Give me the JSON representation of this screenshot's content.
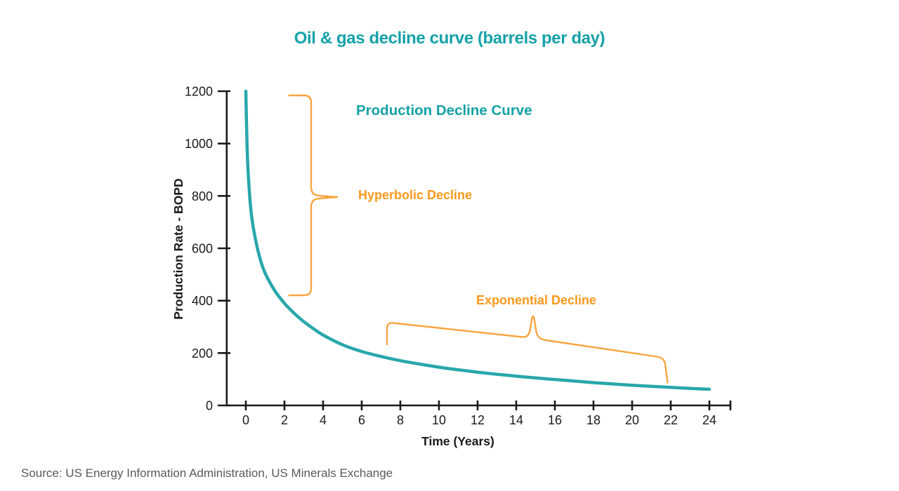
{
  "title": "Oil & gas decline curve (barrels per day)",
  "source": "Source: US Energy Information Administration, US Minerals Exchange",
  "colors": {
    "teal": "#14a1a8",
    "curve": "#28a7ab",
    "orange-text": "#f8991d",
    "orange-brace": "#f9a440",
    "axis": "#1a1a1a",
    "source-gray": "#58595b"
  },
  "annotations": {
    "curve_label": "Production Decline Curve",
    "hyperbolic_label": "Hyperbolic Decline",
    "exponential_label": "Exponential Decline"
  },
  "chart_data": {
    "type": "line",
    "title": "Oil & gas decline curve (barrels per day)",
    "xlabel": "Time (Years)",
    "ylabel": "Production Rate - BOPD",
    "xlim": [
      0,
      25
    ],
    "ylim": [
      0,
      1200
    ],
    "xticks": [
      0,
      2,
      4,
      6,
      8,
      10,
      12,
      14,
      16,
      18,
      20,
      22,
      24
    ],
    "yticks": [
      0,
      200,
      400,
      600,
      800,
      1000,
      1200
    ],
    "grid": false,
    "legend_position": "none",
    "series": [
      {
        "name": "Production Decline Curve",
        "points": [
          [
            0,
            1200
          ],
          [
            0.05,
            1030
          ],
          [
            0.1,
            920
          ],
          [
            0.2,
            800
          ],
          [
            0.3,
            722
          ],
          [
            0.5,
            634
          ],
          [
            0.75,
            558
          ],
          [
            1,
            505
          ],
          [
            1.5,
            438
          ],
          [
            2,
            390
          ],
          [
            2.5,
            352
          ],
          [
            3,
            320
          ],
          [
            3.5,
            293
          ],
          [
            4,
            269
          ],
          [
            5,
            232
          ],
          [
            6,
            206
          ],
          [
            7,
            187
          ],
          [
            8,
            171
          ],
          [
            9,
            158
          ],
          [
            10,
            146
          ],
          [
            11,
            136
          ],
          [
            12,
            127
          ],
          [
            13,
            119
          ],
          [
            14,
            112
          ],
          [
            15,
            105
          ],
          [
            16,
            99
          ],
          [
            17,
            93
          ],
          [
            18,
            87
          ],
          [
            19,
            82
          ],
          [
            20,
            77
          ],
          [
            21,
            73
          ],
          [
            22,
            69
          ],
          [
            23,
            65
          ],
          [
            24,
            62
          ]
        ]
      }
    ],
    "brace_annotations": [
      {
        "label": "Hyperbolic Decline",
        "orientation": "vertical",
        "bopd_range": [
          1200,
          420
        ],
        "at_year": 3.4
      },
      {
        "label": "Exponential Decline",
        "orientation": "horizontal",
        "year_range": [
          7.3,
          21.8
        ]
      }
    ]
  }
}
